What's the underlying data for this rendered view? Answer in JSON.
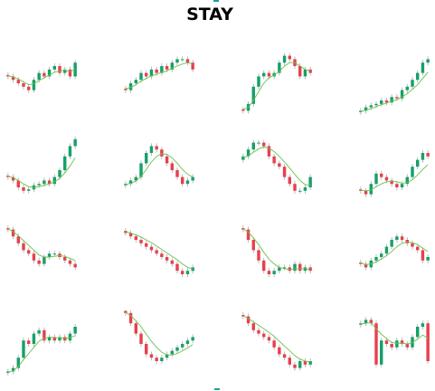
{
  "title": "STAY",
  "chart_data": [
    {
      "type": "candlestick",
      "ylim": [
        0,
        100
      ],
      "open": [
        62,
        60,
        55,
        50,
        45,
        40,
        55,
        65,
        60,
        70,
        75,
        65,
        70,
        60
      ],
      "high": [
        66,
        64,
        59,
        54,
        49,
        59,
        69,
        69,
        74,
        79,
        79,
        74,
        74,
        84
      ],
      "low": [
        56,
        51,
        46,
        41,
        36,
        36,
        51,
        56,
        56,
        66,
        61,
        61,
        56,
        56
      ],
      "close": [
        60,
        55,
        50,
        45,
        40,
        55,
        65,
        60,
        70,
        75,
        65,
        70,
        60,
        80
      ],
      "ma": [
        61,
        59,
        56,
        52,
        48,
        49,
        54,
        58,
        62,
        66,
        68,
        69,
        67,
        70
      ]
    },
    {
      "type": "candlestick",
      "ylim": [
        0,
        100
      ],
      "open": [
        42,
        40,
        50,
        55,
        65,
        60,
        70,
        65,
        75,
        70,
        80,
        85,
        85,
        80
      ],
      "high": [
        46,
        54,
        59,
        69,
        69,
        74,
        74,
        79,
        79,
        84,
        89,
        89,
        89,
        84
      ],
      "low": [
        36,
        36,
        46,
        51,
        56,
        56,
        61,
        61,
        66,
        66,
        76,
        81,
        76,
        66
      ],
      "close": [
        40,
        50,
        55,
        65,
        60,
        70,
        65,
        75,
        70,
        80,
        85,
        85,
        80,
        70
      ],
      "ma": [
        42,
        44,
        48,
        53,
        57,
        61,
        63,
        66,
        68,
        72,
        75,
        78,
        80,
        78
      ]
    },
    {
      "type": "candlestick",
      "ylim": [
        0,
        100
      ],
      "open": [
        12,
        10,
        20,
        45,
        60,
        65,
        60,
        65,
        80,
        90,
        85,
        75,
        60,
        70
      ],
      "high": [
        16,
        24,
        49,
        64,
        69,
        69,
        69,
        84,
        94,
        94,
        89,
        79,
        74,
        74
      ],
      "low": [
        6,
        6,
        16,
        41,
        56,
        56,
        56,
        61,
        76,
        81,
        71,
        56,
        56,
        61
      ],
      "close": [
        10,
        20,
        45,
        60,
        65,
        60,
        65,
        80,
        90,
        85,
        75,
        60,
        70,
        65
      ],
      "ma": [
        12,
        15,
        25,
        38,
        50,
        58,
        62,
        67,
        75,
        80,
        80,
        75,
        70,
        68
      ]
    },
    {
      "type": "candlestick",
      "ylim": [
        0,
        100
      ],
      "open": [
        8,
        10,
        15,
        18,
        20,
        25,
        22,
        30,
        28,
        40,
        45,
        55,
        65,
        80
      ],
      "high": [
        14,
        19,
        22,
        24,
        29,
        29,
        34,
        34,
        44,
        49,
        59,
        69,
        84,
        89
      ],
      "low": [
        4,
        6,
        11,
        14,
        16,
        18,
        18,
        24,
        24,
        36,
        41,
        51,
        61,
        76
      ],
      "close": [
        10,
        15,
        18,
        20,
        25,
        22,
        30,
        28,
        40,
        45,
        55,
        65,
        80,
        85
      ],
      "ma": [
        9,
        11,
        13,
        16,
        19,
        21,
        24,
        26,
        30,
        35,
        41,
        48,
        57,
        66
      ]
    },
    {
      "type": "candlestick",
      "ylim": [
        0,
        100
      ],
      "open": [
        42,
        40,
        35,
        25,
        20,
        22,
        28,
        30,
        35,
        30,
        40,
        50,
        70,
        85
      ],
      "high": [
        46,
        44,
        39,
        29,
        26,
        32,
        34,
        39,
        39,
        44,
        54,
        74,
        89,
        99
      ],
      "low": [
        36,
        31,
        21,
        16,
        16,
        18,
        24,
        26,
        26,
        26,
        36,
        46,
        66,
        81
      ],
      "close": [
        40,
        35,
        25,
        20,
        22,
        28,
        30,
        35,
        30,
        40,
        50,
        70,
        85,
        95
      ],
      "ma": [
        41,
        39,
        35,
        30,
        26,
        25,
        26,
        28,
        30,
        33,
        38,
        46,
        56,
        68
      ]
    },
    {
      "type": "candlestick",
      "ylim": [
        0,
        100
      ],
      "open": [
        28,
        30,
        35,
        40,
        60,
        75,
        85,
        80,
        70,
        60,
        50,
        40,
        30,
        35
      ],
      "high": [
        34,
        39,
        44,
        64,
        79,
        89,
        89,
        84,
        74,
        64,
        54,
        44,
        39,
        44
      ],
      "low": [
        24,
        26,
        31,
        36,
        56,
        71,
        76,
        66,
        56,
        46,
        36,
        26,
        26,
        31
      ],
      "close": [
        30,
        35,
        40,
        60,
        75,
        85,
        80,
        70,
        60,
        50,
        40,
        30,
        35,
        40
      ],
      "ma": [
        29,
        31,
        34,
        41,
        51,
        62,
        70,
        74,
        73,
        68,
        60,
        51,
        44,
        40
      ]
    },
    {
      "type": "candlestick",
      "ylim": [
        0,
        100
      ],
      "open": [
        65,
        70,
        80,
        90,
        90,
        85,
        70,
        60,
        55,
        40,
        30,
        20,
        20,
        25
      ],
      "high": [
        74,
        84,
        94,
        94,
        94,
        89,
        74,
        64,
        59,
        44,
        34,
        24,
        29,
        44
      ],
      "low": [
        61,
        66,
        76,
        86,
        81,
        66,
        56,
        51,
        36,
        26,
        16,
        16,
        16,
        21
      ],
      "close": [
        70,
        80,
        90,
        90,
        85,
        70,
        60,
        55,
        40,
        30,
        20,
        20,
        25,
        40
      ],
      "ma": [
        68,
        71,
        76,
        81,
        84,
        82,
        77,
        70,
        62,
        53,
        44,
        35,
        29,
        28
      ]
    },
    {
      "type": "candlestick",
      "ylim": [
        0,
        100
      ],
      "open": [
        22,
        20,
        15,
        30,
        45,
        40,
        35,
        30,
        25,
        30,
        40,
        55,
        65,
        75
      ],
      "high": [
        26,
        24,
        34,
        49,
        49,
        44,
        39,
        34,
        34,
        44,
        59,
        69,
        79,
        79
      ],
      "low": [
        16,
        11,
        11,
        26,
        36,
        31,
        26,
        21,
        21,
        26,
        36,
        51,
        61,
        66
      ],
      "close": [
        20,
        15,
        30,
        45,
        40,
        35,
        30,
        25,
        30,
        40,
        55,
        65,
        75,
        70
      ],
      "ma": [
        21,
        20,
        21,
        26,
        30,
        33,
        34,
        33,
        31,
        32,
        36,
        43,
        51,
        58
      ]
    },
    {
      "type": "candlestick",
      "ylim": [
        0,
        100
      ],
      "open": [
        92,
        90,
        80,
        70,
        60,
        55,
        45,
        40,
        50,
        55,
        55,
        50,
        45,
        40
      ],
      "high": [
        96,
        94,
        84,
        74,
        64,
        59,
        49,
        54,
        59,
        59,
        59,
        54,
        49,
        44
      ],
      "low": [
        86,
        76,
        66,
        56,
        51,
        41,
        36,
        36,
        46,
        51,
        46,
        41,
        36,
        31
      ],
      "close": [
        90,
        80,
        70,
        60,
        55,
        45,
        40,
        50,
        55,
        55,
        50,
        45,
        40,
        35
      ],
      "ma": [
        91,
        87,
        81,
        74,
        67,
        60,
        53,
        50,
        50,
        51,
        52,
        51,
        48,
        45
      ]
    },
    {
      "type": "candlestick",
      "ylim": [
        0,
        100
      ],
      "open": [
        88,
        85,
        80,
        75,
        70,
        65,
        60,
        55,
        50,
        45,
        40,
        30,
        25,
        30
      ],
      "high": [
        92,
        89,
        84,
        79,
        74,
        69,
        64,
        59,
        54,
        49,
        44,
        34,
        34,
        39
      ],
      "low": [
        81,
        76,
        71,
        66,
        61,
        56,
        51,
        46,
        41,
        36,
        26,
        21,
        21,
        26
      ],
      "close": [
        85,
        80,
        75,
        70,
        65,
        60,
        55,
        50,
        45,
        40,
        30,
        25,
        30,
        35
      ],
      "ma": [
        87,
        85,
        82,
        79,
        75,
        71,
        66,
        61,
        56,
        51,
        46,
        40,
        35,
        33
      ]
    },
    {
      "type": "candlestick",
      "ylim": [
        0,
        100
      ],
      "open": [
        92,
        90,
        75,
        60,
        45,
        30,
        25,
        30,
        35,
        35,
        30,
        40,
        30,
        35
      ],
      "high": [
        96,
        94,
        79,
        64,
        49,
        34,
        34,
        39,
        39,
        39,
        44,
        44,
        39,
        39
      ],
      "low": [
        86,
        71,
        56,
        41,
        26,
        21,
        21,
        26,
        31,
        26,
        26,
        26,
        26,
        26
      ],
      "close": [
        90,
        75,
        60,
        45,
        30,
        25,
        30,
        35,
        35,
        30,
        40,
        30,
        35,
        30
      ],
      "ma": [
        91,
        86,
        78,
        68,
        57,
        47,
        40,
        35,
        33,
        32,
        33,
        33,
        33,
        32
      ]
    },
    {
      "type": "candlestick",
      "ylim": [
        0,
        100
      ],
      "open": [
        42,
        40,
        35,
        45,
        50,
        55,
        65,
        75,
        80,
        75,
        70,
        65,
        60,
        45
      ],
      "high": [
        46,
        44,
        49,
        54,
        59,
        69,
        79,
        84,
        84,
        79,
        74,
        69,
        64,
        54
      ],
      "low": [
        36,
        31,
        31,
        41,
        46,
        51,
        61,
        71,
        71,
        66,
        61,
        56,
        41,
        41
      ],
      "close": [
        40,
        35,
        45,
        50,
        55,
        65,
        75,
        80,
        75,
        70,
        65,
        60,
        45,
        50
      ],
      "ma": [
        41,
        39,
        40,
        43,
        47,
        52,
        58,
        65,
        70,
        72,
        71,
        68,
        63,
        58
      ]
    },
    {
      "type": "candlestick",
      "ylim": [
        0,
        100
      ],
      "open": [
        8,
        10,
        15,
        30,
        55,
        50,
        65,
        70,
        55,
        60,
        55,
        60,
        55,
        65
      ],
      "high": [
        14,
        19,
        34,
        59,
        59,
        69,
        74,
        74,
        64,
        64,
        64,
        64,
        69,
        79
      ],
      "low": [
        4,
        6,
        11,
        26,
        46,
        46,
        61,
        51,
        51,
        51,
        51,
        51,
        51,
        61
      ],
      "close": [
        10,
        15,
        30,
        55,
        50,
        65,
        70,
        55,
        60,
        55,
        60,
        55,
        65,
        75
      ],
      "ma": [
        9,
        11,
        17,
        27,
        36,
        45,
        54,
        58,
        60,
        59,
        59,
        58,
        59,
        62
      ]
    },
    {
      "type": "candlestick",
      "ylim": [
        0,
        100
      ],
      "open": [
        98,
        95,
        80,
        65,
        50,
        35,
        30,
        25,
        30,
        35,
        40,
        45,
        50,
        55
      ],
      "high": [
        99,
        99,
        84,
        69,
        54,
        39,
        34,
        34,
        39,
        44,
        49,
        54,
        59,
        64
      ],
      "low": [
        91,
        76,
        61,
        46,
        31,
        26,
        21,
        21,
        26,
        31,
        36,
        41,
        46,
        51
      ],
      "close": [
        95,
        80,
        65,
        50,
        35,
        30,
        25,
        30,
        35,
        40,
        45,
        50,
        55,
        60
      ],
      "ma": [
        96,
        91,
        84,
        75,
        64,
        54,
        45,
        38,
        34,
        34,
        36,
        40,
        44,
        49
      ]
    },
    {
      "type": "candlestick",
      "ylim": [
        0,
        100
      ],
      "open": [
        92,
        90,
        80,
        70,
        65,
        60,
        55,
        45,
        35,
        30,
        20,
        15,
        25,
        20
      ],
      "high": [
        96,
        94,
        84,
        74,
        69,
        64,
        59,
        49,
        39,
        34,
        24,
        29,
        29,
        29
      ],
      "low": [
        86,
        76,
        66,
        61,
        56,
        51,
        41,
        31,
        26,
        16,
        11,
        11,
        16,
        16
      ],
      "close": [
        90,
        80,
        70,
        65,
        60,
        55,
        45,
        35,
        30,
        20,
        15,
        25,
        20,
        25
      ],
      "ma": [
        91,
        87,
        82,
        77,
        72,
        67,
        61,
        54,
        47,
        40,
        33,
        28,
        25,
        24
      ]
    },
    {
      "type": "candlestick",
      "ylim": [
        0,
        100
      ],
      "open": [
        78,
        80,
        85,
        80,
        20,
        55,
        50,
        45,
        55,
        50,
        45,
        60,
        75,
        80
      ],
      "high": [
        84,
        89,
        89,
        84,
        59,
        59,
        54,
        59,
        59,
        54,
        64,
        79,
        84,
        84
      ],
      "low": [
        74,
        76,
        76,
        16,
        16,
        46,
        41,
        41,
        46,
        41,
        41,
        56,
        71,
        21
      ],
      "close": [
        80,
        85,
        80,
        20,
        55,
        50,
        45,
        55,
        50,
        45,
        60,
        75,
        80,
        25
      ],
      "ma": [
        79,
        80,
        81,
        72,
        64,
        58,
        52,
        51,
        51,
        50,
        52,
        57,
        63,
        58
      ]
    }
  ]
}
